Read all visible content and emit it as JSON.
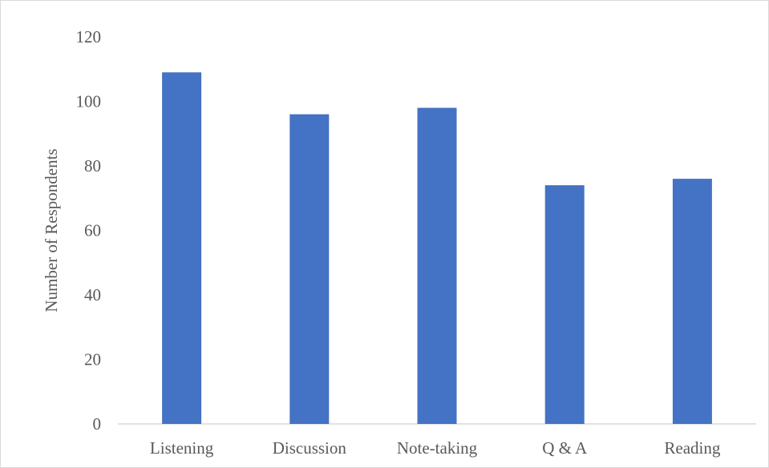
{
  "chart_data": {
    "type": "bar",
    "title": "",
    "xlabel": "",
    "ylabel": "Number of Respondents",
    "categories": [
      "Listening",
      "Discussion",
      "Note-taking",
      "Q & A",
      "Reading"
    ],
    "values": [
      109,
      96,
      98,
      74,
      76
    ],
    "ylim": [
      0,
      120
    ],
    "yticks": [
      0,
      20,
      40,
      60,
      80,
      100,
      120
    ],
    "grid": false,
    "legend": "none",
    "colors": {
      "bar": "#4472C4",
      "axis": "#d9d9d9",
      "text": "#595959"
    }
  }
}
